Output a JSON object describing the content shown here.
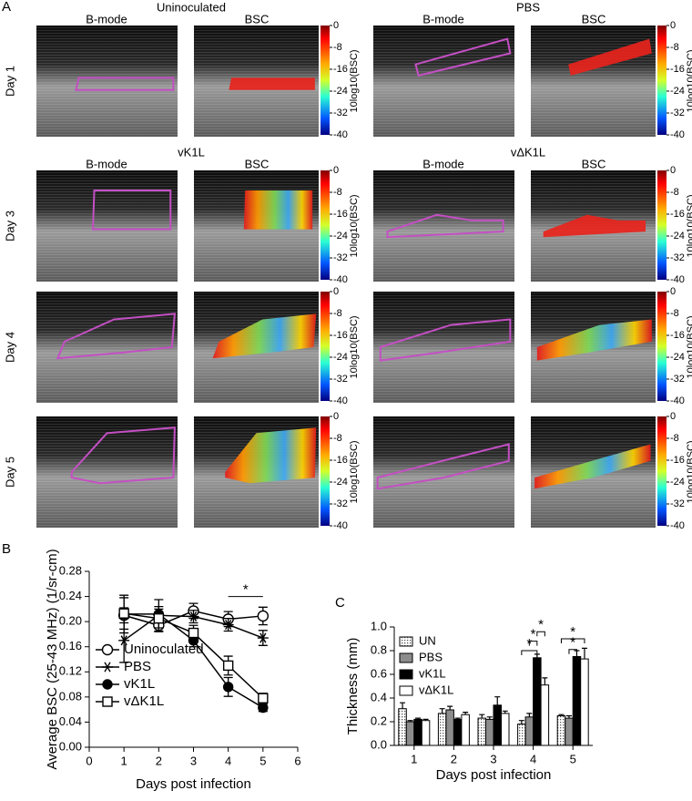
{
  "panel_a": {
    "label": "A",
    "groups": [
      "Uninoculated",
      "PBS",
      "vK1L",
      "vΔK1L"
    ],
    "columns": [
      "B-mode",
      "BSC"
    ],
    "rows": [
      "Day 1",
      "Day 3",
      "Day 4",
      "Day 5"
    ],
    "colorbar": {
      "ticks": [
        0,
        -8,
        -16,
        -24,
        -32,
        -40
      ],
      "label": "10log10(BSC)"
    }
  },
  "chart_data": [
    {
      "type": "line",
      "panel": "B",
      "ylabel": "Average BSC (25-43 MHz) (1/sr-cm)",
      "xlabel": "Days post infection",
      "x": [
        1,
        2,
        3,
        4,
        5
      ],
      "xlim": [
        0,
        6
      ],
      "xticks": [
        0,
        1,
        2,
        3,
        4,
        5,
        6
      ],
      "ylim": [
        0,
        0.28
      ],
      "yticks": [
        {
          "value": 0,
          "label": "0.00"
        },
        {
          "value": 0.04,
          "label": "0.04"
        },
        {
          "value": 0.08,
          "label": "0.08"
        },
        {
          "value": 0.12,
          "label": "0.12"
        },
        {
          "value": 0.16,
          "label": "0.16"
        },
        {
          "value": 0.2,
          "label": "0.20"
        },
        {
          "value": 0.24,
          "label": "0.24"
        },
        {
          "value": 0.28,
          "label": "0.28"
        }
      ],
      "legend": "lower-left",
      "series": [
        {
          "name": "Uninoculated",
          "color": "#000000",
          "marker": "open-circle",
          "values": [
            0.21,
            0.194,
            0.217,
            0.204,
            0.209
          ],
          "errors": [
            0.012,
            0.01,
            0.012,
            0.012,
            0.014
          ]
        },
        {
          "name": "PBS",
          "color": "#000000",
          "marker": "asterisk",
          "values": [
            0.17,
            0.21,
            0.208,
            0.195,
            0.174
          ],
          "errors": [
            0.035,
            0.025,
            0.01,
            0.01,
            0.012
          ]
        },
        {
          "name": "vK1L",
          "color": "#000000",
          "marker": "filled-circle",
          "values": [
            0.212,
            0.212,
            0.17,
            0.096,
            0.063
          ],
          "errors": [
            0.03,
            0.012,
            0.01,
            0.015,
            0.006
          ]
        },
        {
          "name": "vΔK1L",
          "color": "#000000",
          "marker": "open-square",
          "values": [
            0.213,
            0.205,
            0.182,
            0.13,
            0.078
          ],
          "errors": [
            0.025,
            0.015,
            0.012,
            0.015,
            0.008
          ]
        }
      ],
      "annotations": [
        {
          "text": "*",
          "x": [
            4,
            5
          ],
          "y": 0.24
        }
      ]
    },
    {
      "type": "bar",
      "panel": "C",
      "ylabel": "Thickness (mm)",
      "xlabel": "Days post infection",
      "categories": [
        "1",
        "2",
        "3",
        "4",
        "5"
      ],
      "ylim": [
        0,
        1
      ],
      "yticks": [
        {
          "value": 0,
          "label": "0.0"
        },
        {
          "value": 0.2,
          "label": "0.2"
        },
        {
          "value": 0.4,
          "label": "0.4"
        },
        {
          "value": 0.6,
          "label": "0.6"
        },
        {
          "value": 0.8,
          "label": "0.8"
        },
        {
          "value": 1,
          "label": "1.0"
        }
      ],
      "legend": "upper-left",
      "series": [
        {
          "name": "UN",
          "color": "dots",
          "values": [
            0.31,
            0.27,
            0.23,
            0.18,
            0.25
          ],
          "errors": [
            0.05,
            0.04,
            0.03,
            0.03,
            0.01
          ]
        },
        {
          "name": "PBS",
          "color": "#8c8c8c",
          "values": [
            0.2,
            0.3,
            0.22,
            0.24,
            0.23
          ],
          "errors": [
            0.01,
            0.03,
            0.02,
            0.03,
            0.02
          ]
        },
        {
          "name": "vK1L",
          "color": "#000000",
          "values": [
            0.22,
            0.22,
            0.34,
            0.74,
            0.75
          ],
          "errors": [
            0.01,
            0.01,
            0.07,
            0.03,
            0.05
          ]
        },
        {
          "name": "vΔK1L",
          "color": "#ffffff",
          "values": [
            0.21,
            0.26,
            0.27,
            0.51,
            0.73
          ],
          "errors": [
            0.01,
            0.02,
            0.02,
            0.06,
            0.09
          ]
        }
      ],
      "annotations": [
        {
          "text": "*",
          "category": 3,
          "series": [
            0,
            2
          ],
          "y": 0.8
        },
        {
          "text": "*",
          "category": 3,
          "series": [
            1,
            2
          ],
          "y": 0.88
        },
        {
          "text": "*",
          "category": 3,
          "series": [
            2,
            3
          ],
          "y": 0.96
        },
        {
          "text": "*",
          "category": 4,
          "series": [
            1,
            2
          ],
          "y": 0.81
        },
        {
          "text": "*",
          "category": 4,
          "series": [
            0,
            3
          ],
          "y": 0.9
        }
      ]
    }
  ]
}
